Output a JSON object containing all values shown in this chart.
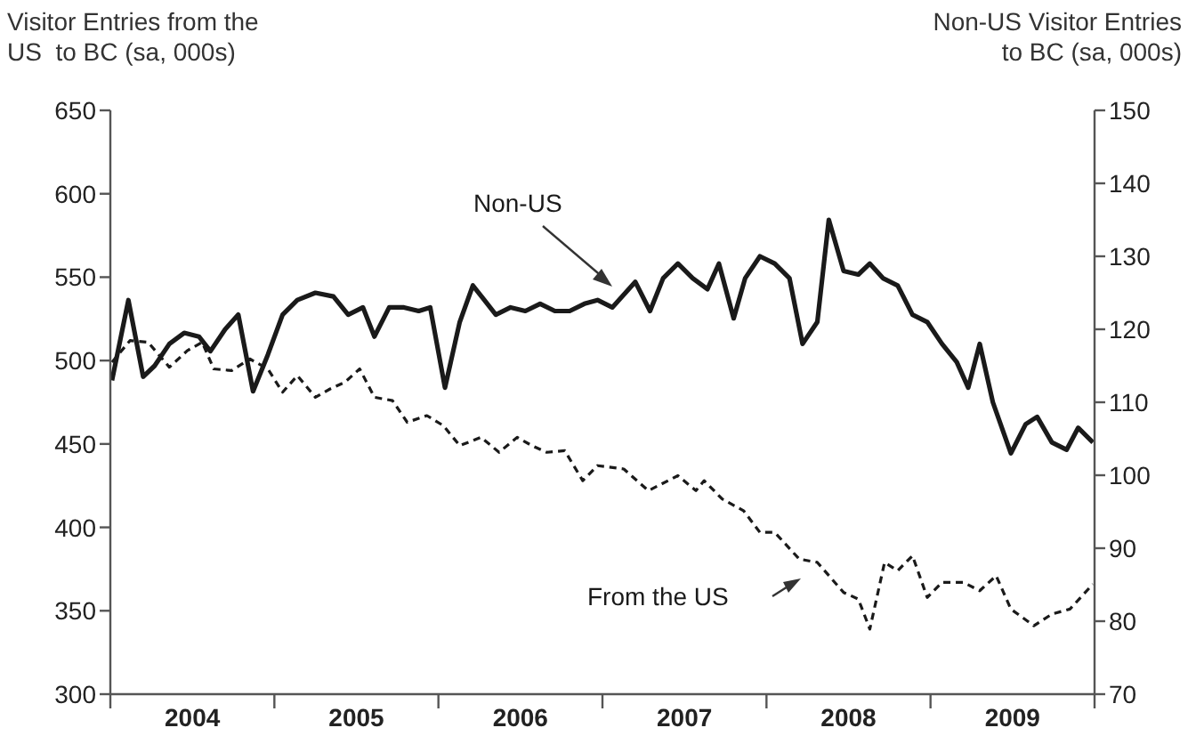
{
  "chart_data": {
    "type": "line",
    "ylabel": "Visitor Entries from the\nUS  to BC (sa, 000s)",
    "y2label": "Non-US Visitor Entries\nto BC (sa, 000s)",
    "xlim": [
      2004,
      2010
    ],
    "xticks": [
      {
        "value": 2004,
        "label": null
      },
      {
        "value": 2004.5,
        "label": "2004"
      },
      {
        "value": 2005,
        "label": null
      },
      {
        "value": 2005.5,
        "label": "2005"
      },
      {
        "value": 2006,
        "label": null
      },
      {
        "value": 2006.5,
        "label": "2006"
      },
      {
        "value": 2007,
        "label": null
      },
      {
        "value": 2007.5,
        "label": "2007"
      },
      {
        "value": 2008,
        "label": null
      },
      {
        "value": 2008.5,
        "label": "2008"
      },
      {
        "value": 2009,
        "label": null
      },
      {
        "value": 2009.5,
        "label": "2009"
      },
      {
        "value": 2010,
        "label": null
      }
    ],
    "ylim": [
      300,
      650
    ],
    "yticks": [
      300,
      350,
      400,
      450,
      500,
      550,
      600,
      650
    ],
    "y2lim": [
      70,
      150
    ],
    "y2ticks": [
      70,
      80,
      90,
      100,
      110,
      120,
      130,
      140,
      150
    ],
    "series": [
      {
        "name": "Non-US",
        "color": "#1a1a1a",
        "axis": "y2",
        "line_style": "solid",
        "x": [
          2004.01,
          2004.11,
          2004.2,
          2004.27,
          2004.36,
          2004.45,
          2004.54,
          2004.61,
          2004.7,
          2004.78,
          2004.87,
          2004.96,
          2005.05,
          2005.14,
          2005.25,
          2005.36,
          2005.45,
          2005.54,
          2005.61,
          2005.7,
          2005.79,
          2005.88,
          2005.95,
          2006.04,
          2006.13,
          2006.21,
          2006.28,
          2006.35,
          2006.44,
          2006.53,
          2006.62,
          2006.71,
          2006.8,
          2006.89,
          2006.97,
          2007.06,
          2007.2,
          2007.29,
          2007.37,
          2007.46,
          2007.55,
          2007.64,
          2007.71,
          2007.8,
          2007.87,
          2007.96,
          2008.05,
          2008.14,
          2008.22,
          2008.31,
          2008.38,
          2008.47,
          2008.56,
          2008.63,
          2008.71,
          2008.8,
          2008.89,
          2008.98,
          2009.07,
          2009.16,
          2009.23,
          2009.3,
          2009.38,
          2009.49,
          2009.58,
          2009.65,
          2009.74,
          2009.83,
          2009.9,
          2009.99
        ],
        "values": [
          113,
          124,
          113.5,
          115,
          118,
          119.5,
          119,
          117,
          120,
          122,
          111.5,
          116.5,
          122,
          124,
          125,
          124.5,
          122,
          123,
          119,
          123,
          123,
          122.5,
          123,
          112,
          121,
          126,
          124,
          122,
          123,
          122.5,
          123.5,
          122.5,
          122.5,
          123.5,
          124,
          123,
          126.5,
          122.5,
          127,
          129,
          127,
          125.5,
          129,
          121.5,
          127,
          130,
          129,
          127,
          118,
          121,
          135,
          128,
          127.5,
          129,
          127,
          126,
          122,
          121,
          118,
          115.5,
          112,
          118,
          110,
          103,
          107,
          108,
          104.5,
          103.5,
          106.5,
          104.5
        ]
      },
      {
        "name": "From the US",
        "color": "#1a1a1a",
        "axis": "y",
        "line_style": "dashed",
        "x": [
          2004.01,
          2004.12,
          2004.23,
          2004.36,
          2004.47,
          2004.56,
          2004.63,
          2004.74,
          2004.85,
          2004.96,
          2005.05,
          2005.14,
          2005.25,
          2005.34,
          2005.43,
          2005.52,
          2005.61,
          2005.72,
          2005.81,
          2005.93,
          2006.03,
          2006.13,
          2006.26,
          2006.37,
          2006.48,
          2006.57,
          2006.66,
          2006.77,
          2006.88,
          2006.97,
          2007.13,
          2007.28,
          2007.46,
          2007.57,
          2007.62,
          2007.73,
          2007.86,
          2007.96,
          2008.05,
          2008.2,
          2008.31,
          2008.47,
          2008.56,
          2008.63,
          2008.72,
          2008.8,
          2008.89,
          2008.98,
          2009.07,
          2009.2,
          2009.3,
          2009.4,
          2009.49,
          2009.63,
          2009.74,
          2009.85,
          2009.99
        ],
        "values": [
          499,
          512,
          511,
          496,
          506,
          511,
          495,
          494,
          501,
          495,
          481,
          491,
          478,
          483,
          487,
          495,
          478,
          476,
          463,
          467,
          461,
          449,
          454,
          445,
          454,
          449,
          445,
          446,
          428,
          437,
          435,
          422,
          431,
          422,
          428,
          417,
          410,
          397,
          397,
          381,
          379,
          361,
          357,
          339,
          379,
          374,
          383,
          358,
          367,
          367,
          362,
          371,
          351,
          341,
          348,
          351,
          366
        ]
      }
    ]
  }
}
